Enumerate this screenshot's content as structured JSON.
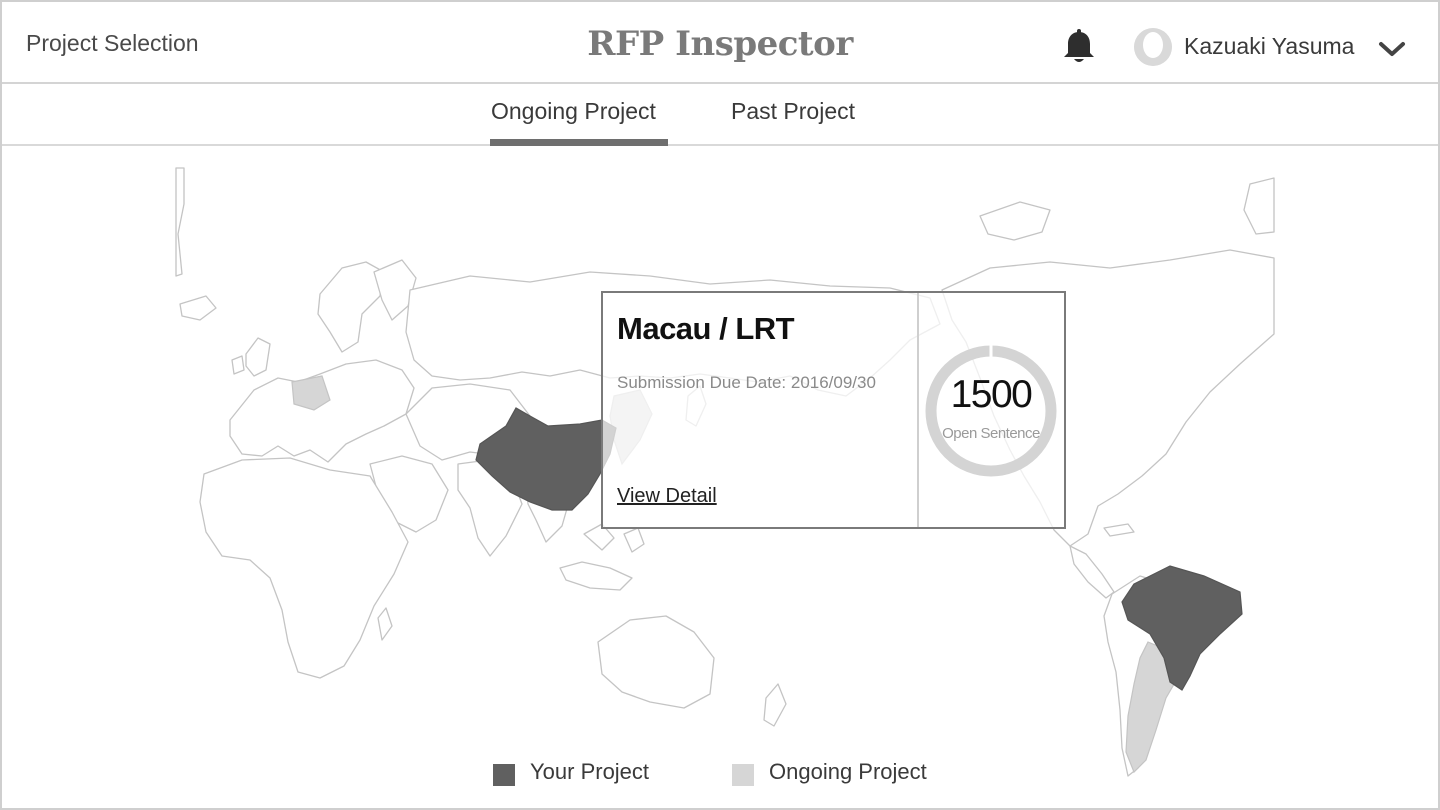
{
  "header": {
    "page_label": "Project Selection",
    "app_title": "RFP Inspector",
    "user_name": "Kazuaki Yasuma",
    "icons": {
      "bell": "bell-icon",
      "avatar": "user-avatar-icon",
      "dropdown": "chevron-down-icon"
    }
  },
  "tabs": [
    {
      "label": "Ongoing Project",
      "active": true
    },
    {
      "label": "Past Project",
      "active": false
    }
  ],
  "popup": {
    "title": "Macau / LRT",
    "due_date": "Submission Due Date: 2016/09/30",
    "link_label": "View Detail",
    "open_count": "1500",
    "open_label": "Open Sentence"
  },
  "legend": [
    {
      "label": "Your Project",
      "color": "#606060"
    },
    {
      "label": "Ongoing Project",
      "color": "#d6d6d6"
    }
  ],
  "colors": {
    "your_project": "#606060",
    "ongoing_project": "#d6d6d6",
    "country_outline": "#c4c4c4",
    "tab_underline": "#6e6e6e"
  }
}
